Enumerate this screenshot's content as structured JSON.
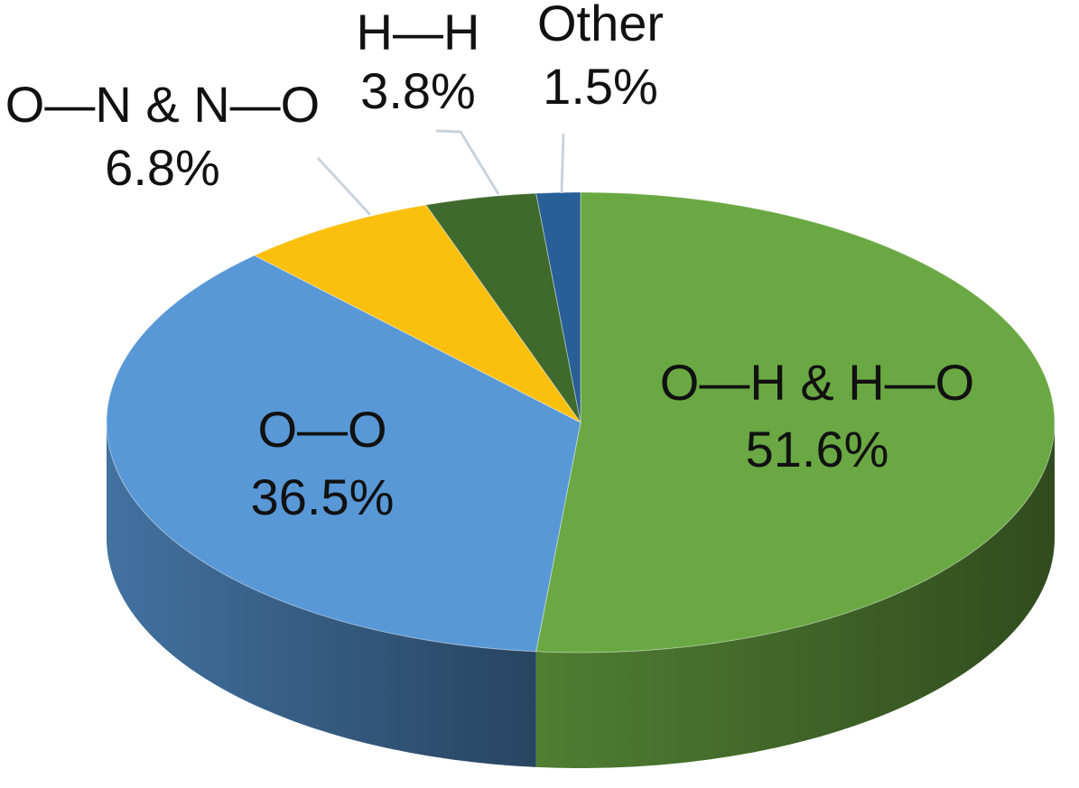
{
  "chart_data": {
    "type": "pie",
    "categories": [
      "O—H & H—O",
      "O—O",
      "O—N & N—O",
      "H—H",
      "Other"
    ],
    "values": [
      51.6,
      36.5,
      6.8,
      3.8,
      1.5
    ],
    "value_labels": [
      "51.6%",
      "36.5%",
      "6.8%",
      "3.8%",
      "1.5%"
    ],
    "colors": [
      "#6aa843",
      "#5898d6",
      "#fbbf0e",
      "#3f6a2c",
      "#285f97"
    ]
  }
}
